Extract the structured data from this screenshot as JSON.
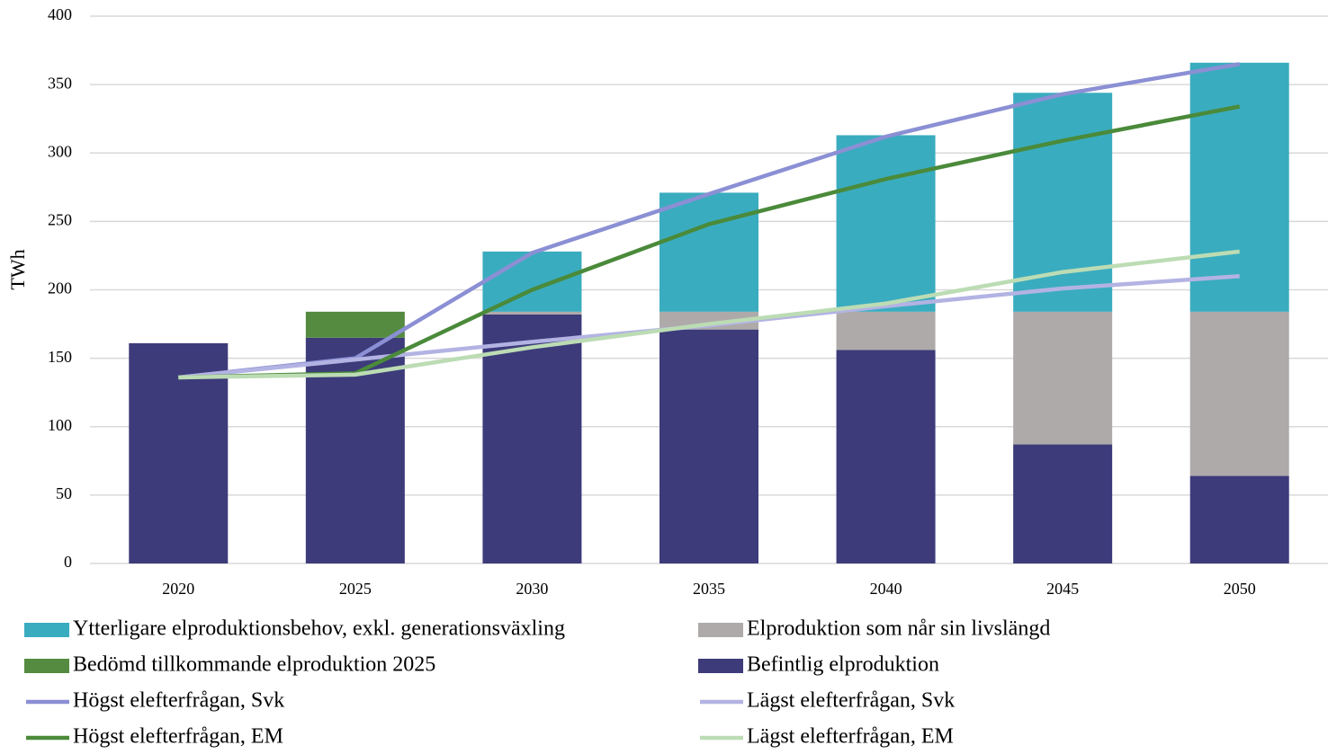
{
  "chart_data": {
    "type": "bar",
    "y_label": "TWh",
    "categories": [
      "2020",
      "2025",
      "2030",
      "2035",
      "2040",
      "2045",
      "2050"
    ],
    "series": [
      {
        "name": "Befintlig elproduktion",
        "color": "#3d3b7a",
        "values": [
          161,
          165,
          182,
          171,
          156,
          87,
          64
        ]
      },
      {
        "name": "Bedömd tillkommande elproduktion 2025",
        "color": "#548b40",
        "values": [
          0,
          19,
          0,
          0,
          0,
          0,
          0
        ]
      },
      {
        "name": "Elproduktion som når sin livslängd",
        "color": "#aeaaaa",
        "values": [
          0,
          0,
          2,
          13,
          28,
          97,
          120
        ]
      },
      {
        "name": "Ytterligare elproduktionsbehov, exkl. generationsväxling",
        "color": "#3aacbf",
        "values": [
          0,
          0,
          44,
          87,
          129,
          160,
          182
        ]
      },
      {
        "name": "Högst elefterfrågan, Svk",
        "type": "line",
        "color": "#8b8fd4",
        "values": [
          136,
          150,
          227,
          270,
          312,
          343,
          365
        ]
      },
      {
        "name": "Lägst elefterfrågan, Svk",
        "type": "line",
        "color": "#b3b3e3",
        "values": [
          136,
          149,
          162,
          174,
          188,
          201,
          210
        ]
      },
      {
        "name": "Högst elefterfrågan, EM",
        "type": "line",
        "color": "#4a8a3a",
        "values": [
          136,
          139,
          200,
          248,
          281,
          309,
          334
        ]
      },
      {
        "name": "Lägst elefterfrågan, EM",
        "type": "line",
        "color": "#bcdcb4",
        "values": [
          136,
          138,
          158,
          175,
          190,
          213,
          228
        ]
      }
    ],
    "stacked": true,
    "ylim": [
      0,
      400
    ],
    "yticks": [
      0,
      50,
      100,
      150,
      200,
      250,
      300,
      350,
      400
    ],
    "grid": true,
    "legend": "bottom"
  }
}
